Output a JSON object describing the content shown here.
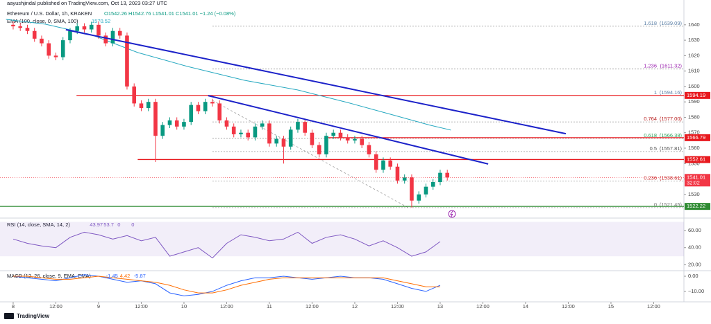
{
  "header": {
    "publisher": "aayushjindal published on TradingView.com, Oct 13, 2023 03:27 UTC"
  },
  "footer": {
    "brand": "TradingView"
  },
  "chart_data": [
    {
      "type": "candlestick",
      "title": "Ethereum / U.S. Dollar, 1h, KRAKEN",
      "ohlc_text": "O1542.26 H1542.76 L1541.01 C1541.01 −1.24 (−0.08%)",
      "xlim": [
        -3.7,
        188.5
      ],
      "ylim": [
        1516,
        1648
      ],
      "yticks": [
        1530,
        1540,
        1550,
        1560,
        1570,
        1580,
        1590,
        1600,
        1610,
        1620,
        1630,
        1640
      ],
      "up_color": "#089981",
      "down_color": "#f23645",
      "x": [
        0,
        2,
        4,
        6,
        8,
        10,
        12,
        14,
        16,
        18,
        20,
        22,
        24,
        26,
        28,
        30,
        32,
        34,
        36,
        38,
        40,
        42,
        44,
        46,
        48,
        50,
        52,
        54,
        56,
        58,
        60,
        62,
        64,
        66,
        68,
        70,
        72,
        74,
        76,
        78,
        80,
        82,
        84,
        86,
        88,
        90,
        92,
        94,
        96,
        98,
        100,
        102,
        104,
        106,
        108,
        110,
        112,
        114,
        116,
        118,
        120,
        122
      ],
      "open": [
        1640,
        1639,
        1638,
        1636,
        1631,
        1628,
        1620,
        1619,
        1630,
        1636,
        1639,
        1637,
        1640,
        1633,
        1628,
        1636,
        1633,
        1600,
        1589,
        1586,
        1590,
        1568,
        1575,
        1578,
        1574,
        1577,
        1588,
        1584,
        1590,
        1589,
        1578,
        1574,
        1569,
        1570,
        1567,
        1574,
        1576,
        1563,
        1566,
        1561,
        1572,
        1577,
        1570,
        1562,
        1556,
        1568,
        1570,
        1567,
        1565,
        1566,
        1562,
        1556,
        1546,
        1552,
        1548,
        1539,
        1541,
        1526,
        1530,
        1535,
        1538,
        1544
      ],
      "high": [
        1642,
        1641,
        1640,
        1638,
        1633,
        1630,
        1622,
        1632,
        1638,
        1641,
        1641,
        1642,
        1642,
        1635,
        1638,
        1638,
        1635,
        1602,
        1591,
        1592,
        1592,
        1577,
        1580,
        1580,
        1579,
        1590,
        1590,
        1592,
        1592,
        1591,
        1580,
        1576,
        1572,
        1572,
        1576,
        1578,
        1578,
        1568,
        1568,
        1574,
        1579,
        1579,
        1572,
        1564,
        1570,
        1572,
        1572,
        1569,
        1568,
        1568,
        1564,
        1558,
        1554,
        1554,
        1550,
        1543,
        1543,
        1532,
        1537,
        1540,
        1546,
        1546
      ],
      "low": [
        1637,
        1636,
        1634,
        1629,
        1626,
        1618,
        1617,
        1617,
        1628,
        1634,
        1635,
        1635,
        1631,
        1626,
        1626,
        1631,
        1598,
        1587,
        1584,
        1584,
        1551,
        1566,
        1573,
        1572,
        1572,
        1575,
        1582,
        1582,
        1587,
        1576,
        1572,
        1567,
        1567,
        1565,
        1565,
        1572,
        1561,
        1561,
        1550,
        1559,
        1570,
        1568,
        1560,
        1554,
        1554,
        1566,
        1565,
        1563,
        1563,
        1560,
        1554,
        1544,
        1544,
        1546,
        1537,
        1537,
        1521.45,
        1524,
        1528,
        1533,
        1536,
        1539
      ],
      "close": [
        1639,
        1638,
        1636,
        1631,
        1628,
        1620,
        1619,
        1630,
        1636,
        1639,
        1637,
        1640,
        1633,
        1628,
        1636,
        1633,
        1600,
        1589,
        1586,
        1590,
        1568,
        1575,
        1578,
        1574,
        1577,
        1588,
        1584,
        1590,
        1589,
        1578,
        1574,
        1569,
        1570,
        1567,
        1574,
        1576,
        1563,
        1566,
        1561,
        1572,
        1577,
        1570,
        1562,
        1556,
        1568,
        1570,
        1567,
        1565,
        1566,
        1562,
        1556,
        1546,
        1552,
        1548,
        1539,
        1541,
        1526,
        1530,
        1535,
        1538,
        1544,
        1541
      ],
      "ema": {
        "label": "EMA (100, close, 0, SMA, 100)",
        "last": 1570.52,
        "color": "#26a8c0",
        "x": [
          -2,
          9,
          22,
          35,
          49,
          65,
          80,
          94,
          106,
          117,
          123
        ],
        "values": [
          1643.5,
          1640.4,
          1633.6,
          1622,
          1613,
          1604,
          1597.7,
          1589.6,
          1582,
          1575,
          1571.7
        ]
      },
      "trendlines": [
        {
          "color": "#1c22c9",
          "x": [
            14.8,
            155.3
          ],
          "values": [
            1636.8,
            1569.4
          ]
        },
        {
          "color": "#1c22c9",
          "x": [
            54.8,
            133.5
          ],
          "values": [
            1594.1,
            1549.7
          ]
        }
      ],
      "levels": [
        {
          "value": 1594.19,
          "color": "#e8191e",
          "start": 17.8
        },
        {
          "value": 1566.79,
          "color": "#e8191e",
          "start": 88
        },
        {
          "value": 1552.61,
          "color": "#e8191e",
          "start": 35
        },
        {
          "value": 1522.22,
          "color": "#2e8b32",
          "start": -3.7
        }
      ],
      "fib": {
        "color": "#9a9a9a",
        "start": 56,
        "levels": [
          {
            "ratio": 1.618,
            "value": 1639.09,
            "label": "(1639.09)",
            "color": "#5b7fa6"
          },
          {
            "ratio": 1.236,
            "value": 1611.32,
            "label": "(1611.32)",
            "color": "#9c27b0"
          },
          {
            "ratio": 1,
            "value": 1594.16,
            "label": "(1594.16)",
            "color": "#5b7fa6"
          },
          {
            "ratio": 0.764,
            "value": 1577,
            "label": "(1577.00)",
            "color": "#b71c1c"
          },
          {
            "ratio": 0.618,
            "value": 1566.38,
            "label": "(1566.38)",
            "color": "#2e9e58"
          },
          {
            "ratio": 0.5,
            "value": 1557.81,
            "label": "(1557.81)",
            "color": "#555555"
          },
          {
            "ratio": 0.236,
            "value": 1538.61,
            "label": "(1538.61)",
            "color": "#c62828"
          },
          {
            "ratio": 0,
            "value": 1521.45,
            "label": "(1521.45)",
            "color": "#777777"
          }
        ],
        "diagonal": {
          "x": [
            56,
            111
          ],
          "values": [
            1591,
            1521.45
          ]
        }
      },
      "last_price": 1541.01,
      "countdown": "32:02"
    },
    {
      "type": "line",
      "title": "RSI (14, close, SMA, 14, 2)",
      "readouts": [
        "43.97",
        "53.7",
        "0",
        "0"
      ],
      "xlim": [
        -3.7,
        188.5
      ],
      "ylim": [
        14,
        72
      ],
      "yticks": [
        {
          "value": 20,
          "label": "20.00"
        },
        {
          "value": 40,
          "label": "40.00"
        },
        {
          "value": 60,
          "label": "60.00"
        }
      ],
      "band": [
        30,
        70
      ],
      "band_color": "#7e57c2",
      "series": [
        {
          "color": "#7e57c2",
          "x": [
            0,
            4,
            8,
            12,
            16,
            20,
            24,
            28,
            32,
            36,
            40,
            44,
            48,
            52,
            56,
            60,
            64,
            68,
            72,
            76,
            80,
            84,
            88,
            92,
            96,
            100,
            104,
            108,
            112,
            116,
            120
          ],
          "values": [
            50,
            45,
            42,
            40,
            52,
            58,
            55,
            50,
            54,
            48,
            52,
            30,
            35,
            40,
            28,
            45,
            55,
            52,
            48,
            50,
            58,
            45,
            52,
            55,
            50,
            42,
            48,
            40,
            30,
            35,
            47
          ]
        }
      ]
    },
    {
      "type": "line",
      "title": "MACD (12, 26, close, 9, EMA, EMA)",
      "readouts": [
        "-1.45",
        "4.42",
        "-5.87"
      ],
      "xlim": [
        -3.7,
        188.5
      ],
      "ylim": [
        -16,
        3.2
      ],
      "yticks": [
        {
          "value": 0,
          "label": "0.00"
        },
        {
          "value": -10,
          "label": "−10.00"
        }
      ],
      "xticks": [
        {
          "value": 0,
          "label": "8"
        },
        {
          "value": 12,
          "label": "12:00"
        },
        {
          "value": 24,
          "label": "9"
        },
        {
          "value": 36,
          "label": "12:00"
        },
        {
          "value": 48,
          "label": "10"
        },
        {
          "value": 60,
          "label": "12:00"
        },
        {
          "value": 72,
          "label": "11"
        },
        {
          "value": 84,
          "label": "12:00"
        },
        {
          "value": 96,
          "label": "12"
        },
        {
          "value": 108,
          "label": "12:00"
        },
        {
          "value": 120,
          "label": "13"
        },
        {
          "value": 132,
          "label": "12:00"
        },
        {
          "value": 144,
          "label": "14"
        },
        {
          "value": 156,
          "label": "12:00"
        },
        {
          "value": 168,
          "label": "15"
        },
        {
          "value": 180,
          "label": "12:00"
        }
      ],
      "series": [
        {
          "color": "#2962ff",
          "x": [
            0,
            4,
            8,
            12,
            16,
            20,
            24,
            28,
            32,
            36,
            40,
            44,
            48,
            52,
            56,
            60,
            64,
            68,
            72,
            76,
            80,
            84,
            88,
            92,
            96,
            100,
            104,
            108,
            112,
            116,
            120
          ],
          "values": [
            0,
            -1,
            -2,
            -3,
            -1,
            1,
            0,
            -2,
            -4,
            -3,
            -5,
            -11,
            -13,
            -12,
            -10,
            -6,
            -3,
            -1,
            -1,
            0,
            -1,
            -2,
            -1,
            0,
            -1,
            -1,
            -2,
            -5,
            -8,
            -10,
            -6
          ]
        },
        {
          "color": "#ff6d00",
          "x": [
            0,
            4,
            8,
            12,
            16,
            20,
            24,
            28,
            32,
            36,
            40,
            44,
            48,
            52,
            56,
            60,
            64,
            68,
            72,
            76,
            80,
            84,
            88,
            92,
            96,
            100,
            104,
            108,
            112,
            116,
            120
          ],
          "values": [
            0,
            0,
            -1,
            -2,
            -2,
            -1,
            0,
            -1,
            -2,
            -3,
            -4,
            -6,
            -9,
            -11,
            -11,
            -9,
            -6,
            -4,
            -2,
            -1,
            -1,
            -1,
            -1,
            -1,
            -1,
            -1,
            -1,
            -3,
            -5,
            -7,
            -7
          ]
        }
      ]
    }
  ]
}
